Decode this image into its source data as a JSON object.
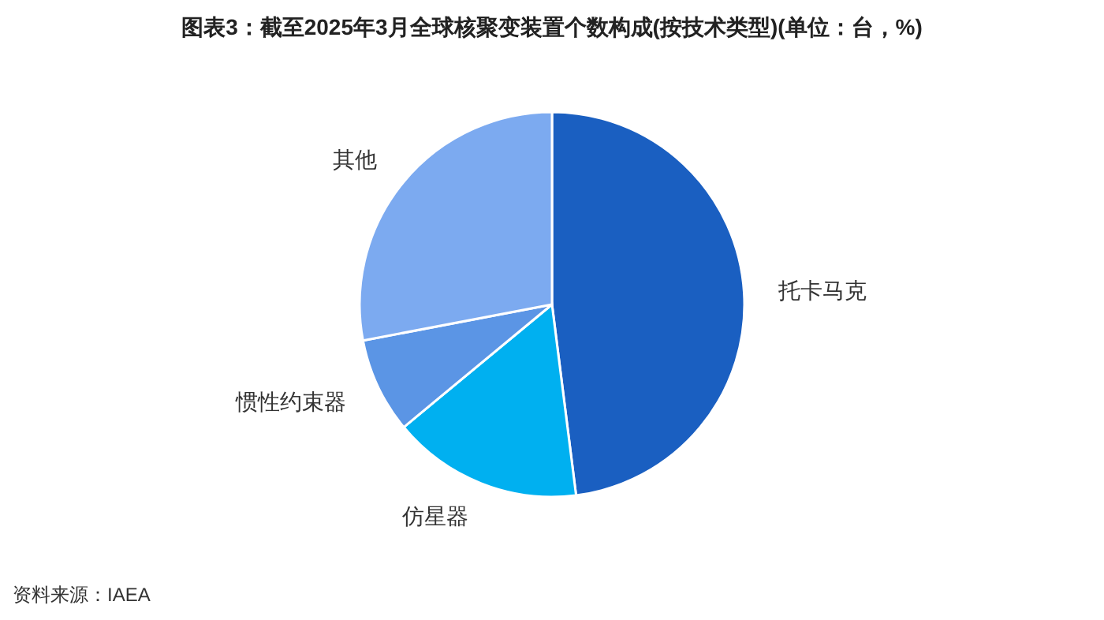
{
  "chart_data": {
    "type": "pie",
    "title": "图表3：截至2025年3月全球核聚变装置个数构成(按技术类型)(单位：台，%)",
    "categories": [
      "托卡马克",
      "仿星器",
      "惯性约束器",
      "其他"
    ],
    "values": [
      48,
      16,
      8,
      28
    ],
    "colors": [
      "#1a5fc1",
      "#00b0f0",
      "#5b95e5",
      "#7caaf0"
    ],
    "annotations": [
      "资料来源：IAEA"
    ]
  }
}
